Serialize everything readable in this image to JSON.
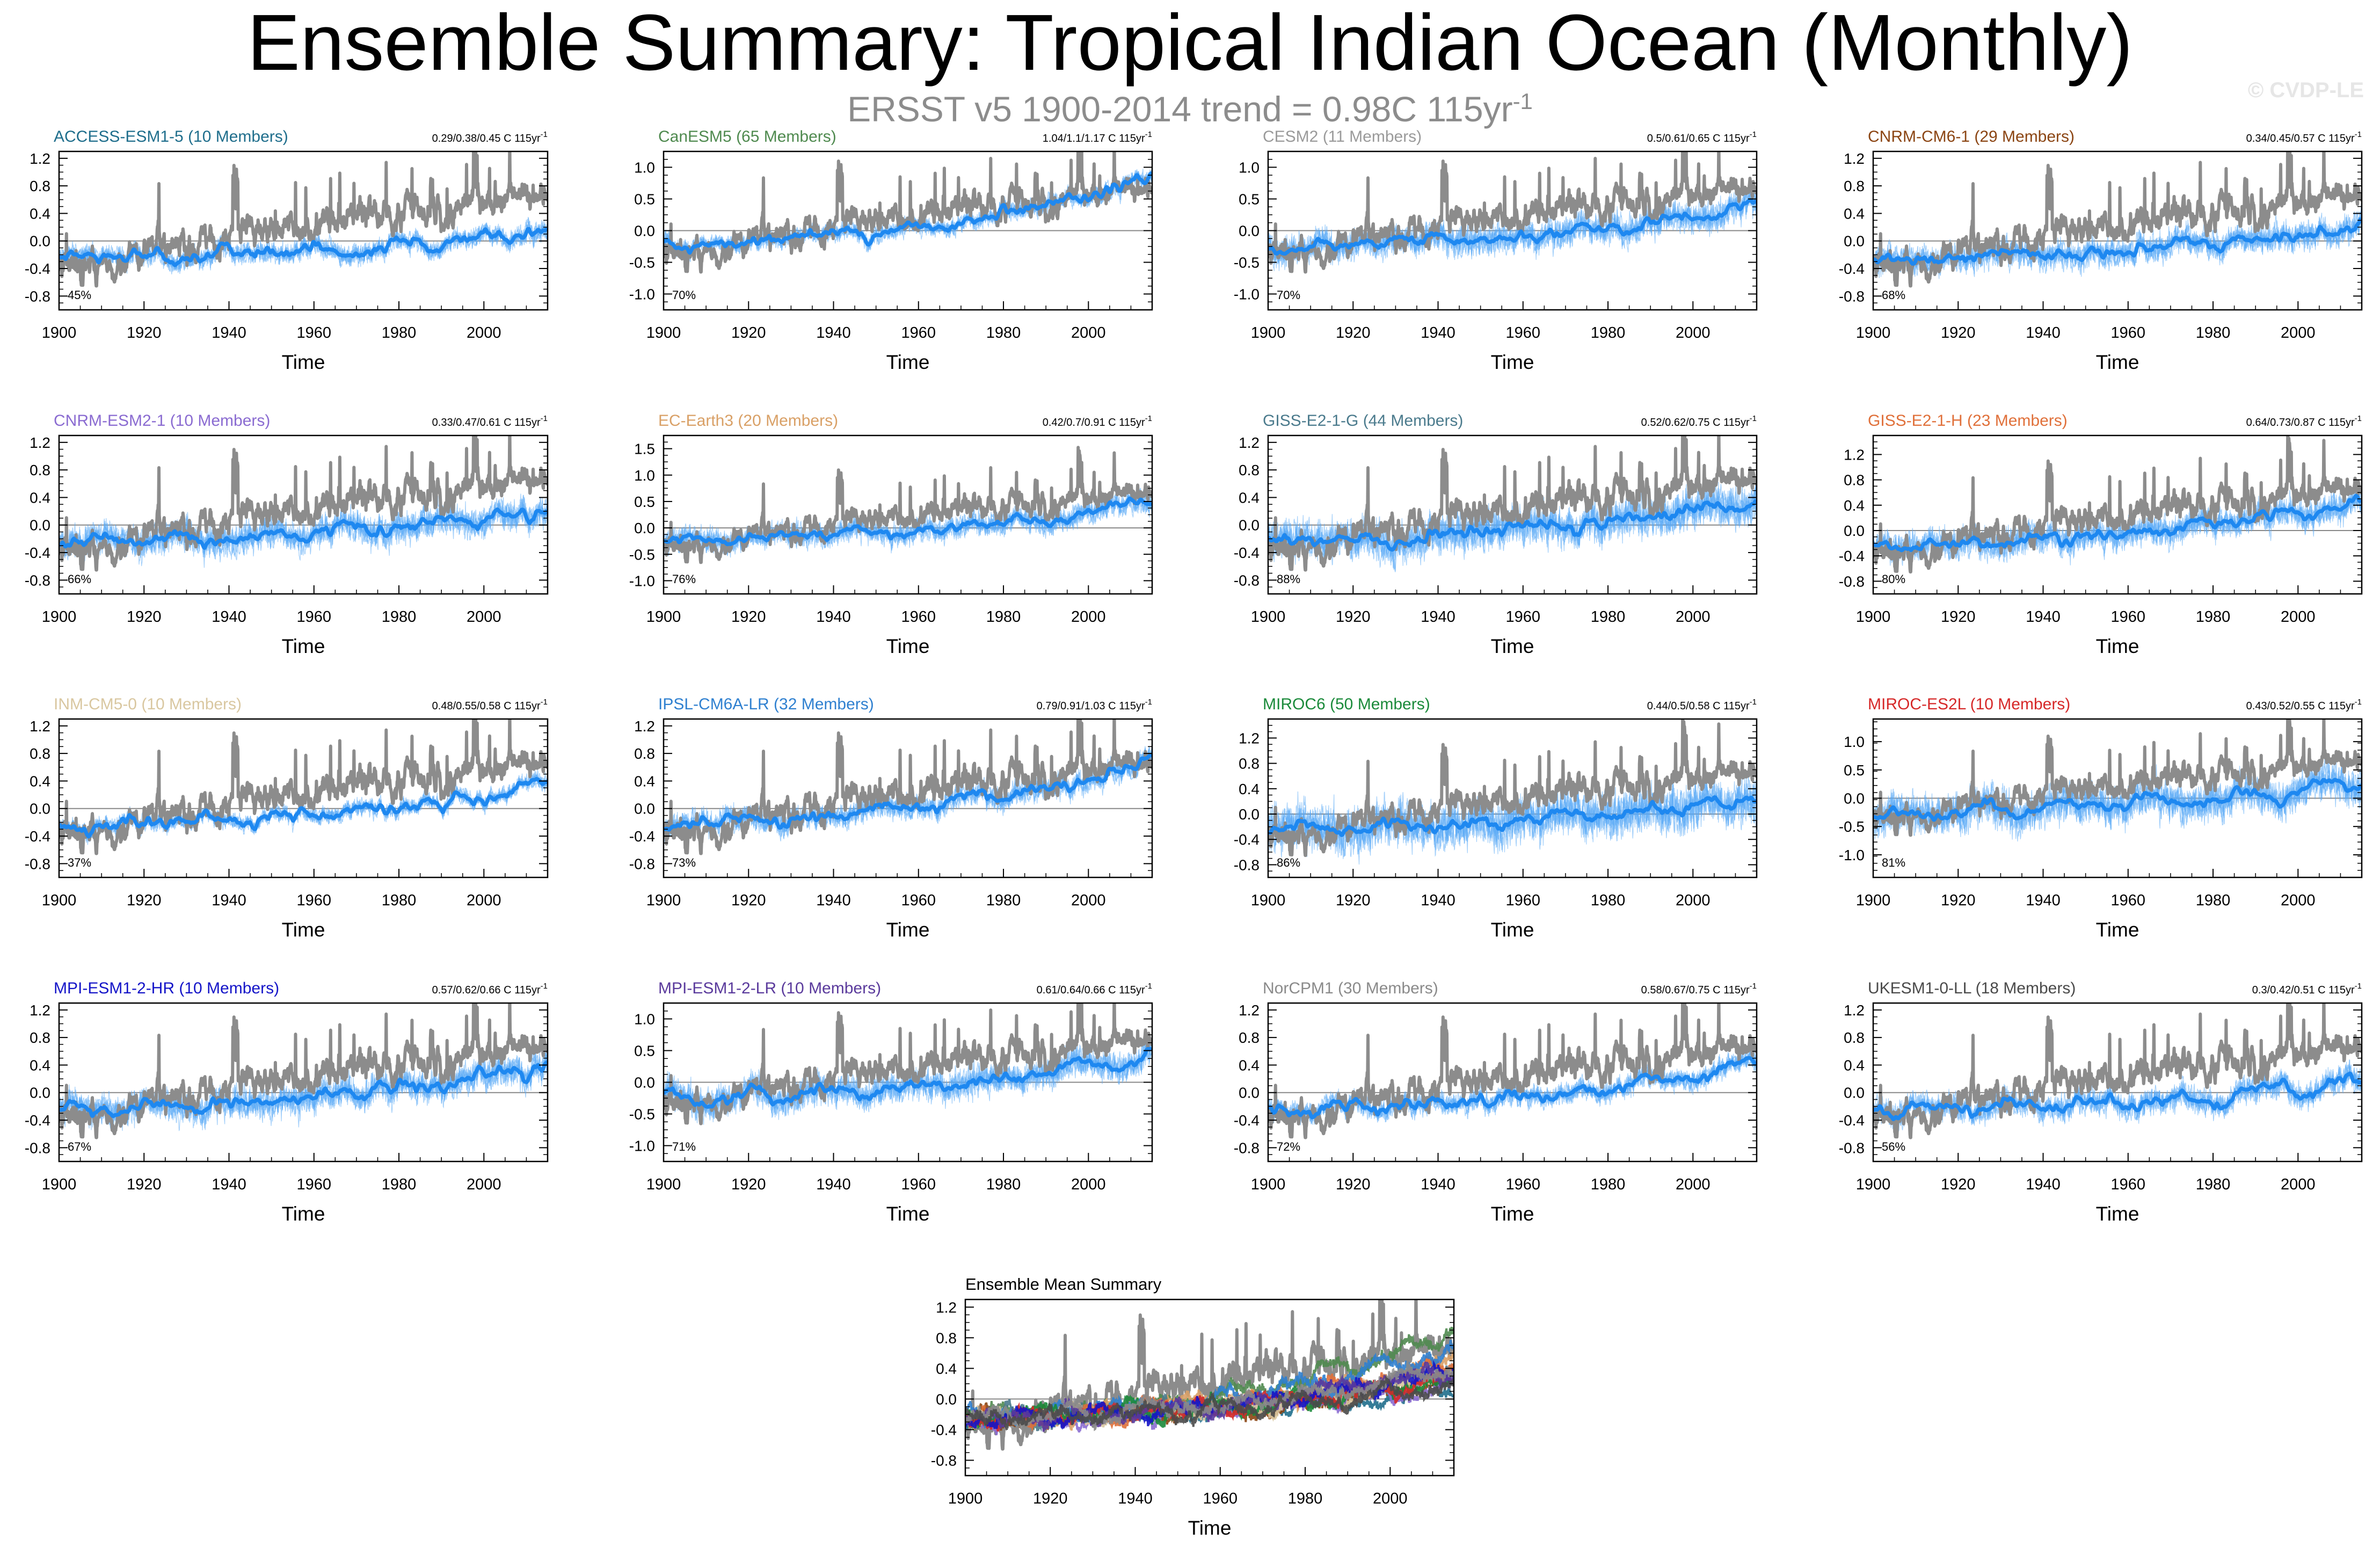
{
  "page": {
    "title": "Ensemble Summary: Tropical Indian Ocean (Monthly)",
    "subtitle_main": "ERSST v5 1900-2014 trend = 0.98C 115yr",
    "subtitle_sup": "-1",
    "watermark": "© CVDP-LE"
  },
  "colors": {
    "observed": "#8c8c8c",
    "members": "#5aaaf5",
    "ensemble_mean": "#1e88f0",
    "zero_line": "#888888"
  },
  "chart_data": [
    {
      "type": "line",
      "title": "ACCESS-ESM1-5 (10 Members)",
      "title_color": "#1f6e8c",
      "trend_text": "0.29/0.38/0.45 C 115yr",
      "trend_sup": "-1",
      "pct_label": "45%",
      "xlabel": "Time",
      "ylabel": "",
      "xlim": [
        1900,
        2015
      ],
      "ylim": [
        -1.0,
        1.3
      ],
      "yticks": [
        -0.8,
        -0.4,
        0.0,
        0.4,
        0.8,
        1.2
      ],
      "xticks": [
        1900,
        1920,
        1940,
        1960,
        1980,
        2000
      ],
      "obs_trend_c_per_115yr": 0.98,
      "model_trend_range": [
        0.29,
        0.45
      ],
      "mean_trend": 0.38,
      "member_spread": 0.18,
      "mean_variability": 0.08,
      "seed": 1
    },
    {
      "type": "line",
      "title": "CanESM5 (65 Members)",
      "title_color": "#4f8a4f",
      "trend_text": "1.04/1.1/1.17 C 115yr",
      "trend_sup": "-1",
      "pct_label": "70%",
      "xlabel": "Time",
      "ylabel": "",
      "xlim": [
        1900,
        2015
      ],
      "ylim": [
        -1.25,
        1.25
      ],
      "yticks": [
        -1.0,
        -0.5,
        0.0,
        0.5,
        1.0
      ],
      "xticks": [
        1900,
        1920,
        1940,
        1960,
        1980,
        2000
      ],
      "obs_trend_c_per_115yr": 0.98,
      "model_trend_range": [
        1.04,
        1.17
      ],
      "mean_trend": 1.1,
      "member_spread": 0.16,
      "mean_variability": 0.06,
      "seed": 2
    },
    {
      "type": "line",
      "title": "CESM2 (11 Members)",
      "title_color": "#9a9a9a",
      "trend_text": "0.5/0.61/0.65 C 115yr",
      "trend_sup": "-1",
      "pct_label": "70%",
      "xlabel": "Time",
      "ylabel": "",
      "xlim": [
        1900,
        2015
      ],
      "ylim": [
        -1.25,
        1.25
      ],
      "yticks": [
        -1.0,
        -0.5,
        0.0,
        0.5,
        1.0
      ],
      "xticks": [
        1900,
        1920,
        1940,
        1960,
        1980,
        2000
      ],
      "obs_trend_c_per_115yr": 0.98,
      "model_trend_range": [
        0.5,
        0.65
      ],
      "mean_trend": 0.61,
      "member_spread": 0.28,
      "mean_variability": 0.1,
      "seed": 3
    },
    {
      "type": "line",
      "title": "CNRM-CM6-1 (29 Members)",
      "title_color": "#8b4513",
      "trend_text": "0.34/0.45/0.57 C 115yr",
      "trend_sup": "-1",
      "pct_label": "68%",
      "xlabel": "Time",
      "ylabel": "",
      "xlim": [
        1900,
        2015
      ],
      "ylim": [
        -1.0,
        1.3
      ],
      "yticks": [
        -0.8,
        -0.4,
        0.0,
        0.4,
        0.8,
        1.2
      ],
      "xticks": [
        1900,
        1920,
        1940,
        1960,
        1980,
        2000
      ],
      "obs_trend_c_per_115yr": 0.98,
      "model_trend_range": [
        0.34,
        0.57
      ],
      "mean_trend": 0.45,
      "member_spread": 0.24,
      "mean_variability": 0.06,
      "seed": 4
    },
    {
      "type": "line",
      "title": "CNRM-ESM2-1 (10 Members)",
      "title_color": "#8a6bd1",
      "trend_text": "0.33/0.47/0.61 C 115yr",
      "trend_sup": "-1",
      "pct_label": "66%",
      "xlabel": "Time",
      "ylabel": "",
      "xlim": [
        1900,
        2015
      ],
      "ylim": [
        -1.0,
        1.3
      ],
      "yticks": [
        -0.8,
        -0.4,
        0.0,
        0.4,
        0.8,
        1.2
      ],
      "xticks": [
        1900,
        1920,
        1940,
        1960,
        1980,
        2000
      ],
      "obs_trend_c_per_115yr": 0.98,
      "model_trend_range": [
        0.33,
        0.61
      ],
      "mean_trend": 0.47,
      "member_spread": 0.26,
      "mean_variability": 0.1,
      "seed": 5
    },
    {
      "type": "line",
      "title": "EC-Earth3 (20 Members)",
      "title_color": "#d9a066",
      "trend_text": "0.42/0.7/0.91 C 115yr",
      "trend_sup": "-1",
      "pct_label": "76%",
      "xlabel": "Time",
      "ylabel": "",
      "xlim": [
        1900,
        2015
      ],
      "ylim": [
        -1.25,
        1.75
      ],
      "yticks": [
        -1.0,
        -0.5,
        0.0,
        0.5,
        1.0,
        1.5
      ],
      "xticks": [
        1900,
        1920,
        1940,
        1960,
        1980,
        2000
      ],
      "obs_trend_c_per_115yr": 0.98,
      "model_trend_range": [
        0.42,
        0.91
      ],
      "mean_trend": 0.7,
      "member_spread": 0.26,
      "mean_variability": 0.08,
      "seed": 6
    },
    {
      "type": "line",
      "title": "GISS-E2-1-G (44 Members)",
      "title_color": "#4a7a8c",
      "trend_text": "0.52/0.62/0.75 C 115yr",
      "trend_sup": "-1",
      "pct_label": "88%",
      "xlabel": "Time",
      "ylabel": "",
      "xlim": [
        1900,
        2015
      ],
      "ylim": [
        -1.0,
        1.3
      ],
      "yticks": [
        -0.8,
        -0.4,
        0.0,
        0.4,
        0.8,
        1.2
      ],
      "xticks": [
        1900,
        1920,
        1940,
        1960,
        1980,
        2000
      ],
      "obs_trend_c_per_115yr": 0.98,
      "model_trend_range": [
        0.52,
        0.75
      ],
      "mean_trend": 0.62,
      "member_spread": 0.34,
      "mean_variability": 0.1,
      "seed": 7
    },
    {
      "type": "line",
      "title": "GISS-E2-1-H (23 Members)",
      "title_color": "#e0703a",
      "trend_text": "0.64/0.73/0.87 C 115yr",
      "trend_sup": "-1",
      "pct_label": "80%",
      "xlabel": "Time",
      "ylabel": "",
      "xlim": [
        1900,
        2015
      ],
      "ylim": [
        -1.0,
        1.5
      ],
      "yticks": [
        -0.8,
        -0.4,
        0.0,
        0.4,
        0.8,
        1.2
      ],
      "xticks": [
        1900,
        1920,
        1940,
        1960,
        1980,
        2000
      ],
      "obs_trend_c_per_115yr": 0.98,
      "model_trend_range": [
        0.64,
        0.87
      ],
      "mean_trend": 0.73,
      "member_spread": 0.28,
      "mean_variability": 0.1,
      "seed": 8
    },
    {
      "type": "line",
      "title": "INM-CM5-0 (10 Members)",
      "title_color": "#d9c7a0",
      "trend_text": "0.48/0.55/0.58 C 115yr",
      "trend_sup": "-1",
      "pct_label": "37%",
      "xlabel": "Time",
      "ylabel": "",
      "xlim": [
        1900,
        2015
      ],
      "ylim": [
        -1.0,
        1.3
      ],
      "yticks": [
        -0.8,
        -0.4,
        0.0,
        0.4,
        0.8,
        1.2
      ],
      "xticks": [
        1900,
        1920,
        1940,
        1960,
        1980,
        2000
      ],
      "obs_trend_c_per_115yr": 0.98,
      "model_trend_range": [
        0.48,
        0.58
      ],
      "mean_trend": 0.55,
      "member_spread": 0.14,
      "mean_variability": 0.1,
      "seed": 9
    },
    {
      "type": "line",
      "title": "IPSL-CM6A-LR (32 Members)",
      "title_color": "#2f80d0",
      "trend_text": "0.79/0.91/1.03 C 115yr",
      "trend_sup": "-1",
      "pct_label": "73%",
      "xlabel": "Time",
      "ylabel": "",
      "xlim": [
        1900,
        2015
      ],
      "ylim": [
        -1.0,
        1.3
      ],
      "yticks": [
        -0.8,
        -0.4,
        0.0,
        0.4,
        0.8,
        1.2
      ],
      "xticks": [
        1900,
        1920,
        1940,
        1960,
        1980,
        2000
      ],
      "obs_trend_c_per_115yr": 0.98,
      "model_trend_range": [
        0.79,
        1.03
      ],
      "mean_trend": 0.91,
      "member_spread": 0.2,
      "mean_variability": 0.06,
      "seed": 10
    },
    {
      "type": "line",
      "title": "MIROC6 (50 Members)",
      "title_color": "#1a8a3a",
      "trend_text": "0.44/0.5/0.58 C 115yr",
      "trend_sup": "-1",
      "pct_label": "86%",
      "xlabel": "Time",
      "ylabel": "",
      "xlim": [
        1900,
        2015
      ],
      "ylim": [
        -1.0,
        1.5
      ],
      "yticks": [
        -0.8,
        -0.4,
        0.0,
        0.4,
        0.8,
        1.2
      ],
      "xticks": [
        1900,
        1920,
        1940,
        1960,
        1980,
        2000
      ],
      "obs_trend_c_per_115yr": 0.98,
      "model_trend_range": [
        0.44,
        0.58
      ],
      "mean_trend": 0.5,
      "member_spread": 0.42,
      "mean_variability": 0.1,
      "seed": 11
    },
    {
      "type": "line",
      "title": "MIROC-ES2L (10 Members)",
      "title_color": "#d62828",
      "trend_text": "0.43/0.52/0.55 C 115yr",
      "trend_sup": "-1",
      "pct_label": "81%",
      "xlabel": "Time",
      "ylabel": "",
      "xlim": [
        1900,
        2015
      ],
      "ylim": [
        -1.4,
        1.4
      ],
      "yticks": [
        -1.0,
        -0.5,
        0.0,
        0.5,
        1.0
      ],
      "xticks": [
        1900,
        1920,
        1940,
        1960,
        1980,
        2000
      ],
      "obs_trend_c_per_115yr": 0.98,
      "model_trend_range": [
        0.43,
        0.55
      ],
      "mean_trend": 0.52,
      "member_spread": 0.4,
      "mean_variability": 0.16,
      "seed": 12
    },
    {
      "type": "line",
      "title": "MPI-ESM1-2-HR (10 Members)",
      "title_color": "#1414c8",
      "trend_text": "0.57/0.62/0.66 C 115yr",
      "trend_sup": "-1",
      "pct_label": "67%",
      "xlabel": "Time",
      "ylabel": "",
      "xlim": [
        1900,
        2015
      ],
      "ylim": [
        -1.0,
        1.3
      ],
      "yticks": [
        -0.8,
        -0.4,
        0.0,
        0.4,
        0.8,
        1.2
      ],
      "xticks": [
        1900,
        1920,
        1940,
        1960,
        1980,
        2000
      ],
      "obs_trend_c_per_115yr": 0.98,
      "model_trend_range": [
        0.57,
        0.66
      ],
      "mean_trend": 0.62,
      "member_spread": 0.26,
      "mean_variability": 0.1,
      "seed": 13
    },
    {
      "type": "line",
      "title": "MPI-ESM1-2-LR (10 Members)",
      "title_color": "#5a3a9c",
      "trend_text": "0.61/0.64/0.66 C 115yr",
      "trend_sup": "-1",
      "pct_label": "71%",
      "xlabel": "Time",
      "ylabel": "",
      "xlim": [
        1900,
        2015
      ],
      "ylim": [
        -1.25,
        1.25
      ],
      "yticks": [
        -1.0,
        -0.5,
        0.0,
        0.5,
        1.0
      ],
      "xticks": [
        1900,
        1920,
        1940,
        1960,
        1980,
        2000
      ],
      "obs_trend_c_per_115yr": 0.98,
      "model_trend_range": [
        0.61,
        0.66
      ],
      "mean_trend": 0.64,
      "member_spread": 0.28,
      "mean_variability": 0.12,
      "seed": 14
    },
    {
      "type": "line",
      "title": "NorCPM1 (30 Members)",
      "title_color": "#8a8a8a",
      "trend_text": "0.58/0.67/0.75 C 115yr",
      "trend_sup": "-1",
      "pct_label": "72%",
      "xlabel": "Time",
      "ylabel": "",
      "xlim": [
        1900,
        2015
      ],
      "ylim": [
        -1.0,
        1.3
      ],
      "yticks": [
        -0.8,
        -0.4,
        0.0,
        0.4,
        0.8,
        1.2
      ],
      "xticks": [
        1900,
        1920,
        1940,
        1960,
        1980,
        2000
      ],
      "obs_trend_c_per_115yr": 0.98,
      "model_trend_range": [
        0.58,
        0.75
      ],
      "mean_trend": 0.67,
      "member_spread": 0.18,
      "mean_variability": 0.06,
      "seed": 15
    },
    {
      "type": "line",
      "title": "UKESM1-0-LL (18 Members)",
      "title_color": "#4a4a4a",
      "trend_text": "0.3/0.42/0.51 C 115yr",
      "trend_sup": "-1",
      "pct_label": "56%",
      "xlabel": "Time",
      "ylabel": "",
      "xlim": [
        1900,
        2015
      ],
      "ylim": [
        -1.0,
        1.3
      ],
      "yticks": [
        -0.8,
        -0.4,
        0.0,
        0.4,
        0.8,
        1.2
      ],
      "xticks": [
        1900,
        1920,
        1940,
        1960,
        1980,
        2000
      ],
      "obs_trend_c_per_115yr": 0.98,
      "model_trend_range": [
        0.3,
        0.51
      ],
      "mean_trend": 0.42,
      "member_spread": 0.22,
      "mean_variability": 0.1,
      "seed": 16
    },
    {
      "type": "line",
      "title": "Ensemble Mean Summary",
      "title_color": "#000000",
      "trend_text": "",
      "trend_sup": "",
      "pct_label": "",
      "xlabel": "Time",
      "ylabel": "",
      "xlim": [
        1900,
        2015
      ],
      "ylim": [
        -1.0,
        1.3
      ],
      "yticks": [
        -0.8,
        -0.4,
        0.0,
        0.4,
        0.8,
        1.2
      ],
      "xticks": [
        1900,
        1920,
        1940,
        1960,
        1980,
        2000
      ],
      "summary": true,
      "series_colors": [
        "#1f6e8c",
        "#4f8a4f",
        "#9a9a9a",
        "#8b4513",
        "#8a6bd1",
        "#d9a066",
        "#4a7a8c",
        "#e0703a",
        "#d9c7a0",
        "#2f80d0",
        "#1a8a3a",
        "#d62828",
        "#1414c8",
        "#5a3a9c",
        "#8a8a8a",
        "#4a4a4a"
      ],
      "series_trends": [
        0.38,
        1.1,
        0.61,
        0.45,
        0.47,
        0.7,
        0.62,
        0.73,
        0.55,
        0.91,
        0.5,
        0.52,
        0.62,
        0.64,
        0.67,
        0.42
      ],
      "seed": 17
    }
  ]
}
